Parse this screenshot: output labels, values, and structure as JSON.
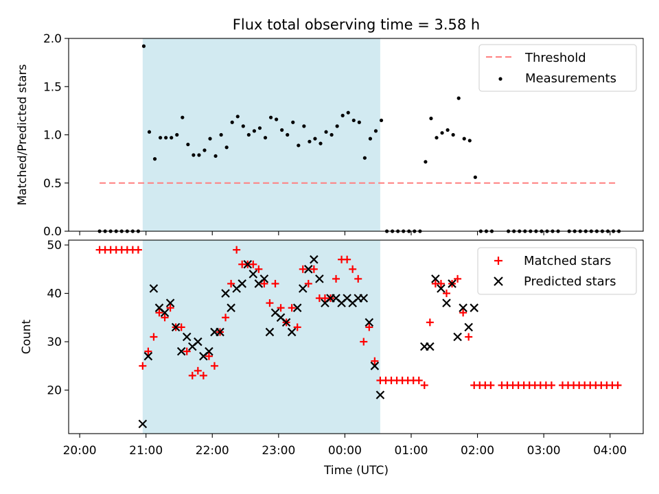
{
  "figure": {
    "title": "Flux total observing time = 3.58 h",
    "xlabel": "Time (UTC)",
    "x_ticks": [
      "20:00",
      "21:00",
      "22:00",
      "23:00",
      "00:00",
      "01:00",
      "02:00",
      "03:00",
      "04:00"
    ]
  },
  "colors": {
    "threshold": "#ff7f7f",
    "measurements": "#000000",
    "matched": "#ff0000",
    "predicted": "#000000",
    "shade": "#add8e6"
  },
  "chart_data": [
    {
      "type": "scatter",
      "ylabel": "Matched/Predicted stars",
      "ylim": [
        0,
        2.0
      ],
      "y_ticks": [
        "0.0",
        "0.5",
        "1.0",
        "1.5",
        "2.0"
      ],
      "shaded_interval": [
        "20:57",
        "00:32"
      ],
      "legend_position": "top-right",
      "threshold": {
        "name": "Threshold",
        "y": 0.5,
        "x_range": [
          "20:18",
          "04:05"
        ]
      },
      "series": [
        {
          "name": "Measurements",
          "points": [
            [
              "20:18",
              0
            ],
            [
              "20:23",
              0
            ],
            [
              "20:28",
              0
            ],
            [
              "20:33",
              0
            ],
            [
              "20:38",
              0
            ],
            [
              "20:43",
              0
            ],
            [
              "20:48",
              0
            ],
            [
              "20:53",
              0
            ],
            [
              "20:58",
              1.92
            ],
            [
              "21:03",
              1.03
            ],
            [
              "21:08",
              0.75
            ],
            [
              "21:13",
              0.97
            ],
            [
              "21:18",
              0.97
            ],
            [
              "21:23",
              0.97
            ],
            [
              "21:28",
              1.0
            ],
            [
              "21:33",
              1.18
            ],
            [
              "21:38",
              0.9
            ],
            [
              "21:43",
              0.79
            ],
            [
              "21:48",
              0.79
            ],
            [
              "21:53",
              0.84
            ],
            [
              "21:58",
              0.96
            ],
            [
              "22:03",
              0.78
            ],
            [
              "22:08",
              1.0
            ],
            [
              "22:13",
              0.87
            ],
            [
              "22:18",
              1.13
            ],
            [
              "22:23",
              1.19
            ],
            [
              "22:28",
              1.09
            ],
            [
              "22:33",
              1.0
            ],
            [
              "22:38",
              1.04
            ],
            [
              "22:43",
              1.07
            ],
            [
              "22:48",
              0.97
            ],
            [
              "22:53",
              1.18
            ],
            [
              "22:58",
              1.16
            ],
            [
              "23:03",
              1.05
            ],
            [
              "23:08",
              1.0
            ],
            [
              "23:13",
              1.13
            ],
            [
              "23:18",
              0.89
            ],
            [
              "23:23",
              1.09
            ],
            [
              "23:28",
              0.93
            ],
            [
              "23:33",
              0.96
            ],
            [
              "23:38",
              0.91
            ],
            [
              "23:43",
              1.03
            ],
            [
              "23:48",
              1.0
            ],
            [
              "23:53",
              1.09
            ],
            [
              "23:58",
              1.2
            ],
            [
              "00:03",
              1.23
            ],
            [
              "00:08",
              1.15
            ],
            [
              "00:13",
              1.13
            ],
            [
              "00:18",
              0.76
            ],
            [
              "00:23",
              0.96
            ],
            [
              "00:28",
              1.04
            ],
            [
              "00:33",
              1.15
            ],
            [
              "00:38",
              0
            ],
            [
              "00:43",
              0
            ],
            [
              "00:48",
              0
            ],
            [
              "00:53",
              0
            ],
            [
              "00:58",
              0
            ],
            [
              "01:03",
              0
            ],
            [
              "01:08",
              0
            ],
            [
              "01:13",
              0.72
            ],
            [
              "01:18",
              1.17
            ],
            [
              "01:23",
              0.97
            ],
            [
              "01:28",
              1.02
            ],
            [
              "01:33",
              1.05
            ],
            [
              "01:38",
              1.0
            ],
            [
              "01:43",
              1.38
            ],
            [
              "01:48",
              0.96
            ],
            [
              "01:53",
              0.94
            ],
            [
              "01:58",
              0.56
            ],
            [
              "02:03",
              0
            ],
            [
              "02:08",
              0
            ],
            [
              "02:13",
              0
            ],
            [
              "02:28",
              0
            ],
            [
              "02:33",
              0
            ],
            [
              "02:38",
              0
            ],
            [
              "02:43",
              0
            ],
            [
              "02:48",
              0
            ],
            [
              "02:53",
              0
            ],
            [
              "02:58",
              0
            ],
            [
              "03:03",
              0
            ],
            [
              "03:08",
              0
            ],
            [
              "03:13",
              0
            ],
            [
              "03:23",
              0
            ],
            [
              "03:28",
              0
            ],
            [
              "03:33",
              0
            ],
            [
              "03:38",
              0
            ],
            [
              "03:43",
              0
            ],
            [
              "03:48",
              0
            ],
            [
              "03:53",
              0
            ],
            [
              "03:58",
              0
            ],
            [
              "04:03",
              0
            ],
            [
              "04:08",
              0
            ]
          ]
        }
      ]
    },
    {
      "type": "scatter",
      "ylabel": "Count",
      "ylim": [
        11,
        51
      ],
      "y_ticks": [
        20,
        30,
        40,
        50
      ],
      "shaded_interval": [
        "20:57",
        "00:32"
      ],
      "legend_position": "top-right",
      "series": [
        {
          "name": "Matched stars",
          "marker": "+",
          "points": [
            [
              "20:18",
              49
            ],
            [
              "20:23",
              49
            ],
            [
              "20:28",
              49
            ],
            [
              "20:33",
              49
            ],
            [
              "20:38",
              49
            ],
            [
              "20:43",
              49
            ],
            [
              "20:48",
              49
            ],
            [
              "20:53",
              49
            ],
            [
              "20:57",
              25
            ],
            [
              "21:02",
              28
            ],
            [
              "21:07",
              31
            ],
            [
              "21:12",
              36
            ],
            [
              "21:17",
              35
            ],
            [
              "21:22",
              37
            ],
            [
              "21:27",
              33
            ],
            [
              "21:32",
              33
            ],
            [
              "21:37",
              28
            ],
            [
              "21:42",
              23
            ],
            [
              "21:47",
              24
            ],
            [
              "21:52",
              23
            ],
            [
              "21:57",
              27
            ],
            [
              "22:02",
              25
            ],
            [
              "22:07",
              32
            ],
            [
              "22:12",
              35
            ],
            [
              "22:17",
              42
            ],
            [
              "22:22",
              49
            ],
            [
              "22:27",
              46
            ],
            [
              "22:32",
              46
            ],
            [
              "22:37",
              46
            ],
            [
              "22:42",
              45
            ],
            [
              "22:47",
              42
            ],
            [
              "22:52",
              38
            ],
            [
              "22:57",
              42
            ],
            [
              "23:02",
              37
            ],
            [
              "23:07",
              34
            ],
            [
              "23:12",
              37
            ],
            [
              "23:17",
              33
            ],
            [
              "23:22",
              45
            ],
            [
              "23:27",
              42
            ],
            [
              "23:32",
              45
            ],
            [
              "23:37",
              39
            ],
            [
              "23:42",
              39
            ],
            [
              "23:47",
              39
            ],
            [
              "23:52",
              43
            ],
            [
              "23:57",
              47
            ],
            [
              "00:02",
              47
            ],
            [
              "00:07",
              45
            ],
            [
              "00:12",
              43
            ],
            [
              "00:17",
              30
            ],
            [
              "00:22",
              33
            ],
            [
              "00:27",
              26
            ],
            [
              "00:32",
              22
            ],
            [
              "00:37",
              22
            ],
            [
              "00:42",
              22
            ],
            [
              "00:47",
              22
            ],
            [
              "00:52",
              22
            ],
            [
              "00:57",
              22
            ],
            [
              "01:02",
              22
            ],
            [
              "01:07",
              22
            ],
            [
              "01:12",
              21
            ],
            [
              "01:17",
              34
            ],
            [
              "01:22",
              42
            ],
            [
              "01:27",
              42
            ],
            [
              "01:32",
              40
            ],
            [
              "01:37",
              42
            ],
            [
              "01:42",
              43
            ],
            [
              "01:47",
              36
            ],
            [
              "01:52",
              31
            ],
            [
              "01:57",
              21
            ],
            [
              "02:02",
              21
            ],
            [
              "02:07",
              21
            ],
            [
              "02:12",
              21
            ],
            [
              "02:22",
              21
            ],
            [
              "02:27",
              21
            ],
            [
              "02:32",
              21
            ],
            [
              "02:37",
              21
            ],
            [
              "02:42",
              21
            ],
            [
              "02:47",
              21
            ],
            [
              "02:52",
              21
            ],
            [
              "02:57",
              21
            ],
            [
              "03:02",
              21
            ],
            [
              "03:07",
              21
            ],
            [
              "03:17",
              21
            ],
            [
              "03:22",
              21
            ],
            [
              "03:27",
              21
            ],
            [
              "03:32",
              21
            ],
            [
              "03:37",
              21
            ],
            [
              "03:42",
              21
            ],
            [
              "03:47",
              21
            ],
            [
              "03:52",
              21
            ],
            [
              "03:57",
              21
            ],
            [
              "04:02",
              21
            ],
            [
              "04:07",
              21
            ]
          ]
        },
        {
          "name": "Predicted stars",
          "marker": "x",
          "points": [
            [
              "20:57",
              13
            ],
            [
              "21:02",
              27
            ],
            [
              "21:07",
              41
            ],
            [
              "21:12",
              37
            ],
            [
              "21:17",
              36
            ],
            [
              "21:22",
              38
            ],
            [
              "21:27",
              33
            ],
            [
              "21:32",
              28
            ],
            [
              "21:37",
              31
            ],
            [
              "21:42",
              29
            ],
            [
              "21:47",
              30
            ],
            [
              "21:52",
              27
            ],
            [
              "21:57",
              28
            ],
            [
              "22:02",
              32
            ],
            [
              "22:07",
              32
            ],
            [
              "22:12",
              40
            ],
            [
              "22:17",
              37
            ],
            [
              "22:22",
              41
            ],
            [
              "22:27",
              42
            ],
            [
              "22:32",
              46
            ],
            [
              "22:37",
              44
            ],
            [
              "22:42",
              42
            ],
            [
              "22:47",
              43
            ],
            [
              "22:52",
              32
            ],
            [
              "22:57",
              36
            ],
            [
              "23:02",
              35
            ],
            [
              "23:07",
              34
            ],
            [
              "23:12",
              32
            ],
            [
              "23:17",
              37
            ],
            [
              "23:22",
              41
            ],
            [
              "23:27",
              45
            ],
            [
              "23:32",
              47
            ],
            [
              "23:37",
              43
            ],
            [
              "23:42",
              38
            ],
            [
              "23:47",
              39
            ],
            [
              "23:52",
              39
            ],
            [
              "23:57",
              38
            ],
            [
              "00:02",
              39
            ],
            [
              "00:07",
              38
            ],
            [
              "00:12",
              39
            ],
            [
              "00:17",
              39
            ],
            [
              "00:22",
              34
            ],
            [
              "00:27",
              25
            ],
            [
              "00:32",
              19
            ],
            [
              "01:12",
              29
            ],
            [
              "01:17",
              29
            ],
            [
              "01:22",
              43
            ],
            [
              "01:27",
              41
            ],
            [
              "01:32",
              38
            ],
            [
              "01:37",
              42
            ],
            [
              "01:42",
              31
            ],
            [
              "01:47",
              37
            ],
            [
              "01:52",
              33
            ],
            [
              "01:57",
              37
            ]
          ]
        }
      ]
    }
  ]
}
